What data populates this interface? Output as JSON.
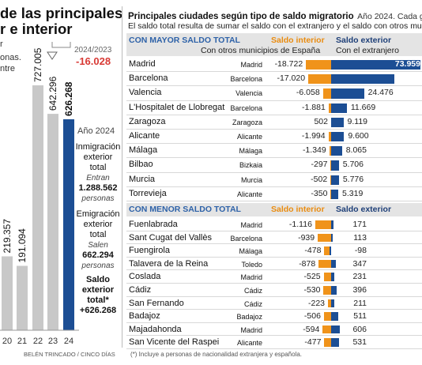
{
  "left": {
    "title_lines": [
      "de las principales",
      "r e interior"
    ],
    "subtitle_lines": [
      "r",
      "onas.",
      "ntre"
    ],
    "change_label": "2024/2023",
    "change_value": "-16.028",
    "year_label": "Año 2024",
    "inmigracion": {
      "lines": [
        "Inmigración",
        "exterior",
        "total"
      ],
      "sub": "Entran",
      "value": "1.288.562",
      "unit": "personas"
    },
    "emigracion": {
      "lines": [
        "Emigración",
        "exterior",
        "total"
      ],
      "sub": "Salen",
      "value": "662.294",
      "unit": "personas"
    },
    "saldo": {
      "lines": [
        "Saldo",
        "exterior",
        "total*"
      ],
      "value": "+626.268"
    },
    "credit": "BELÉN TRINCADO / CINCO DÍAS"
  },
  "right": {
    "title": "Principales ciudades según tipo de saldo migratorio",
    "title_suffix": "Año 2024. Cada gráfico",
    "subtitle": "El saldo total resulta de sumar el saldo con el extranjero y el saldo con otros mu",
    "top_section": {
      "header": "CON MAYOR SALDO TOTAL",
      "col_int": "Saldo interior",
      "col_int_sub": "Con otros municipios de España",
      "col_ext": "Saldo exterior",
      "col_ext_sub": "Con el extranjero"
    },
    "bottom_section": {
      "header": "CON MENOR SALDO TOTAL",
      "col_int": "Saldo interior",
      "col_ext": "Saldo exterior"
    },
    "footnote": "(*) Incluye a personas de nacionalidad extranjera y española."
  },
  "chart_data": [
    {
      "type": "bar",
      "categories": [
        "20",
        "21",
        "22",
        "23",
        "24"
      ],
      "values": [
        219357,
        191094,
        727005,
        642296,
        626268
      ],
      "value_labels": [
        "219.357",
        "191.094",
        "727.005",
        "642.296",
        "626.268"
      ],
      "colors": [
        "#c8c8c8",
        "#c8c8c8",
        "#c8c8c8",
        "#c8c8c8",
        "#1c4e94"
      ],
      "ylim": [
        0,
        760000
      ]
    },
    {
      "type": "bar",
      "title": "CON MAYOR SALDO TOTAL",
      "rows": [
        {
          "city": "Madrid",
          "province": "Madrid",
          "interior": -18722,
          "interior_label": "-18.722",
          "exterior": 73959,
          "exterior_label": "73.959"
        },
        {
          "city": "Barcelona",
          "province": "Barcelona",
          "interior": -17020,
          "interior_label": "-17.020",
          "exterior": 46974,
          "exterior_label": "46.974"
        },
        {
          "city": "Valencia",
          "province": "Valencia",
          "interior": -6058,
          "interior_label": "-6.058",
          "exterior": 24476,
          "exterior_label": "24.476"
        },
        {
          "city": "L'Hospitalet de Llobregat",
          "province": "Barcelona",
          "interior": -1881,
          "interior_label": "-1.881",
          "exterior": 11669,
          "exterior_label": "11.669"
        },
        {
          "city": "Zaragoza",
          "province": "Zaragoza",
          "interior": 502,
          "interior_label": "502",
          "exterior": 9119,
          "exterior_label": "9.119"
        },
        {
          "city": "Alicante",
          "province": "Alicante",
          "interior": -1994,
          "interior_label": "-1.994",
          "exterior": 9600,
          "exterior_label": "9.600"
        },
        {
          "city": "Málaga",
          "province": "Málaga",
          "interior": -1349,
          "interior_label": "-1.349",
          "exterior": 8065,
          "exterior_label": "8.065"
        },
        {
          "city": "Bilbao",
          "province": "Bizkaia",
          "interior": -297,
          "interior_label": "-297",
          "exterior": 5706,
          "exterior_label": "5.706"
        },
        {
          "city": "Murcia",
          "province": "Murcia",
          "interior": -502,
          "interior_label": "-502",
          "exterior": 5776,
          "exterior_label": "5.776"
        },
        {
          "city": "Torrevieja",
          "province": "Alicante",
          "interior": -350,
          "interior_label": "-350",
          "exterior": 5319,
          "exterior_label": "5.319"
        }
      ],
      "colors": {
        "interior": "#f0931a",
        "exterior": "#1c4e94"
      }
    },
    {
      "type": "bar",
      "title": "CON MENOR SALDO TOTAL",
      "rows": [
        {
          "city": "Fuenlabrada",
          "province": "Madrid",
          "interior": -1116,
          "interior_label": "-1.116",
          "exterior": 171,
          "exterior_label": "171"
        },
        {
          "city": "Sant Cugat del Vallès",
          "province": "Barcelona",
          "interior": -939,
          "interior_label": "-939",
          "exterior": 113,
          "exterior_label": "113"
        },
        {
          "city": "Fuengirola",
          "province": "Málaga",
          "interior": -478,
          "interior_label": "-478",
          "exterior": -98,
          "exterior_label": "-98"
        },
        {
          "city": "Talavera de la Reina",
          "province": "Toledo",
          "interior": -878,
          "interior_label": "-878",
          "exterior": 347,
          "exterior_label": "347"
        },
        {
          "city": "Coslada",
          "province": "Madrid",
          "interior": -525,
          "interior_label": "-525",
          "exterior": 231,
          "exterior_label": "231"
        },
        {
          "city": "Cádiz",
          "province": "Cádiz",
          "interior": -530,
          "interior_label": "-530",
          "exterior": 396,
          "exterior_label": "396"
        },
        {
          "city": "San Fernando",
          "province": "Cádiz",
          "interior": -223,
          "interior_label": "-223",
          "exterior": 211,
          "exterior_label": "211"
        },
        {
          "city": "Badajoz",
          "province": "Badajoz",
          "interior": -506,
          "interior_label": "-506",
          "exterior": 511,
          "exterior_label": "511"
        },
        {
          "city": "Majadahonda",
          "province": "Madrid",
          "interior": -594,
          "interior_label": "-594",
          "exterior": 606,
          "exterior_label": "606"
        },
        {
          "city": "San Vicente del Raspei",
          "province": "Alicante",
          "interior": -477,
          "interior_label": "-477",
          "exterior": 531,
          "exterior_label": "531"
        }
      ],
      "colors": {
        "interior": "#f0931a",
        "exterior": "#1c4e94"
      }
    }
  ]
}
